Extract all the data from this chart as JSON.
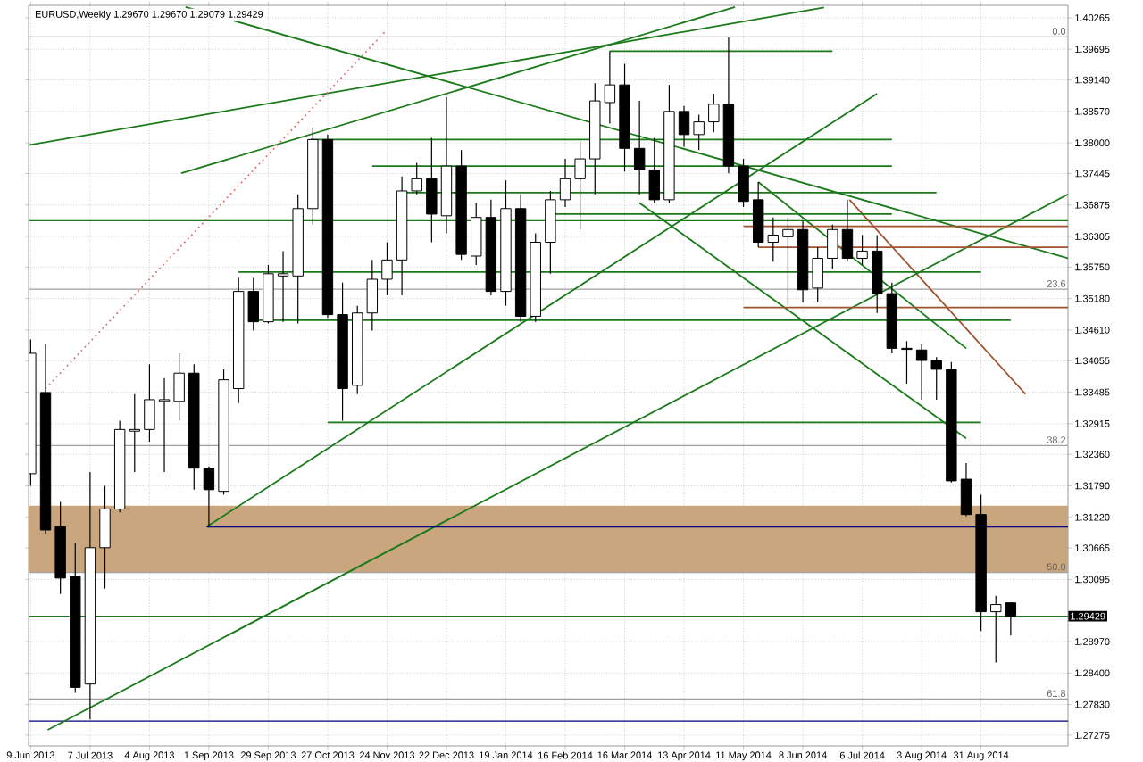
{
  "chart_data": {
    "type": "candlestick",
    "title": "EURUSD,Weekly  1.29670 1.29670 1.29079 1.29429",
    "x": [
      "2013-06-09",
      "2013-06-16",
      "2013-06-23",
      "2013-06-30",
      "2013-07-07",
      "2013-07-14",
      "2013-07-21",
      "2013-07-28",
      "2013-08-04",
      "2013-08-11",
      "2013-08-18",
      "2013-08-25",
      "2013-09-01",
      "2013-09-08",
      "2013-09-15",
      "2013-09-22",
      "2013-09-29",
      "2013-10-06",
      "2013-10-13",
      "2013-10-20",
      "2013-10-27",
      "2013-11-03",
      "2013-11-10",
      "2013-11-17",
      "2013-11-24",
      "2013-12-01",
      "2013-12-08",
      "2013-12-15",
      "2013-12-22",
      "2013-12-29",
      "2014-01-05",
      "2014-01-12",
      "2014-01-19",
      "2014-01-26",
      "2014-02-02",
      "2014-02-09",
      "2014-02-16",
      "2014-02-23",
      "2014-03-02",
      "2014-03-09",
      "2014-03-16",
      "2014-03-23",
      "2014-03-30",
      "2014-04-06",
      "2014-04-13",
      "2014-04-20",
      "2014-04-27",
      "2014-05-04",
      "2014-05-11",
      "2014-05-18",
      "2014-05-25",
      "2014-06-01",
      "2014-06-08",
      "2014-06-15",
      "2014-06-22",
      "2014-06-29",
      "2014-07-06",
      "2014-07-13",
      "2014-07-20",
      "2014-07-27",
      "2014-08-03",
      "2014-08-10",
      "2014-08-17",
      "2014-08-24",
      "2014-08-31",
      "2014-09-07",
      "2014-09-14"
    ],
    "ohlc": [
      [
        1.3201,
        1.3444,
        1.3179,
        1.3419
      ],
      [
        1.3348,
        1.3435,
        1.3092,
        1.3099
      ],
      [
        1.3105,
        1.315,
        1.2983,
        1.3012
      ],
      [
        1.3015,
        1.3076,
        1.2804,
        1.2814
      ],
      [
        1.282,
        1.3204,
        1.2756,
        1.3067
      ],
      [
        1.3067,
        1.3179,
        1.2993,
        1.3137
      ],
      [
        1.3137,
        1.3297,
        1.3131,
        1.3281
      ],
      [
        1.3278,
        1.3345,
        1.3204,
        1.3281
      ],
      [
        1.3281,
        1.3399,
        1.3259,
        1.3335
      ],
      [
        1.3332,
        1.3374,
        1.3204,
        1.3335
      ],
      [
        1.3332,
        1.3419,
        1.3297,
        1.3383
      ],
      [
        1.3383,
        1.3399,
        1.3172,
        1.3211
      ],
      [
        1.3211,
        1.3214,
        1.3105,
        1.3172
      ],
      [
        1.3169,
        1.339,
        1.3163,
        1.3371
      ],
      [
        1.3355,
        1.3556,
        1.3329,
        1.3531
      ],
      [
        1.3531,
        1.3556,
        1.346,
        1.3476
      ],
      [
        1.3476,
        1.3579,
        1.3473,
        1.3563
      ],
      [
        1.3559,
        1.3604,
        1.3476,
        1.3563
      ],
      [
        1.3559,
        1.3707,
        1.3473,
        1.3681
      ],
      [
        1.3681,
        1.3828,
        1.3652,
        1.3806
      ],
      [
        1.3806,
        1.3815,
        1.3483,
        1.3489
      ],
      [
        1.3489,
        1.3547,
        1.3297,
        1.3355
      ],
      [
        1.3361,
        1.3505,
        1.3345,
        1.3492
      ],
      [
        1.3492,
        1.3588,
        1.346,
        1.3553
      ],
      [
        1.3553,
        1.362,
        1.3524,
        1.3588
      ],
      [
        1.3588,
        1.3739,
        1.3524,
        1.3713
      ],
      [
        1.3713,
        1.3764,
        1.3707,
        1.3735
      ],
      [
        1.3735,
        1.3809,
        1.362,
        1.3671
      ],
      [
        1.3668,
        1.3883,
        1.3636,
        1.3758
      ],
      [
        1.3758,
        1.3787,
        1.3588,
        1.3598
      ],
      [
        1.3595,
        1.3691,
        1.3579,
        1.3665
      ],
      [
        1.3665,
        1.3697,
        1.3524,
        1.3531
      ],
      [
        1.3531,
        1.3732,
        1.3505,
        1.3681
      ],
      [
        1.3681,
        1.3707,
        1.3476,
        1.3486
      ],
      [
        1.3486,
        1.3636,
        1.3476,
        1.362
      ],
      [
        1.362,
        1.3713,
        1.3563,
        1.3697
      ],
      [
        1.3697,
        1.3771,
        1.3684,
        1.3735
      ],
      [
        1.3735,
        1.3803,
        1.3643,
        1.3771
      ],
      [
        1.3771,
        1.3908,
        1.3707,
        1.3876
      ],
      [
        1.3873,
        1.3966,
        1.3835,
        1.3905
      ],
      [
        1.3905,
        1.3943,
        1.3748,
        1.379
      ],
      [
        1.379,
        1.3876,
        1.3707,
        1.3751
      ],
      [
        1.3751,
        1.3809,
        1.3691,
        1.3697
      ],
      [
        1.3697,
        1.3905,
        1.3691,
        1.3857
      ],
      [
        1.3857,
        1.3867,
        1.3793,
        1.3815
      ],
      [
        1.3815,
        1.3851,
        1.3787,
        1.3838
      ],
      [
        1.3838,
        1.3889,
        1.3819,
        1.387
      ],
      [
        1.387,
        1.3991,
        1.3745,
        1.3758
      ],
      [
        1.3758,
        1.3771,
        1.3684,
        1.3694
      ],
      [
        1.3697,
        1.3729,
        1.3611,
        1.362
      ],
      [
        1.362,
        1.3665,
        1.3585,
        1.3633
      ],
      [
        1.363,
        1.3665,
        1.3505,
        1.3643
      ],
      [
        1.3643,
        1.3659,
        1.3511,
        1.3534
      ],
      [
        1.3537,
        1.3611,
        1.3511,
        1.3591
      ],
      [
        1.3591,
        1.3652,
        1.3572,
        1.3643
      ],
      [
        1.3643,
        1.3697,
        1.3585,
        1.3591
      ],
      [
        1.3591,
        1.3633,
        1.3579,
        1.3604
      ],
      [
        1.3604,
        1.3633,
        1.3492,
        1.3527
      ],
      [
        1.3527,
        1.3547,
        1.3419,
        1.3428
      ],
      [
        1.3428,
        1.3441,
        1.3364,
        1.3426
      ],
      [
        1.3425,
        1.3435,
        1.3335,
        1.3406
      ],
      [
        1.3406,
        1.3412,
        1.3335,
        1.339
      ],
      [
        1.339,
        1.3403,
        1.3185,
        1.3188
      ],
      [
        1.3191,
        1.322,
        1.3124,
        1.3127
      ],
      [
        1.3127,
        1.3163,
        1.2916,
        1.2951
      ],
      [
        1.2951,
        1.298,
        1.2859,
        1.2964
      ],
      [
        1.2967,
        1.2967,
        1.29079,
        1.29429
      ]
    ],
    "series": [
      {
        "type": "line",
        "x": [
          "2013-06-08",
          "2014-06-18"
        ],
        "values": [
          1.3796,
          1.4045
        ],
        "color": "#1a7a1a",
        "line_style": "solid"
      },
      {
        "type": "line",
        "x": [
          "2013-08-19",
          "2014-05-07"
        ],
        "values": [
          1.3745,
          1.4046
        ],
        "color": "#1a7a1a",
        "line_style": "solid"
      },
      {
        "type": "line",
        "x": [
          "2013-08-21",
          "2014-10-11"
        ],
        "values": [
          1.4046,
          1.3591
        ],
        "color": "#1a7a1a",
        "line_style": "solid"
      },
      {
        "type": "line",
        "x": [
          "2014-03-23",
          "2014-08-24"
        ],
        "values": [
          1.3691,
          1.3265
        ],
        "color": "#1a7a1a",
        "line_style": "solid"
      },
      {
        "type": "line",
        "x": [
          "2014-05-18",
          "2014-08-24"
        ],
        "values": [
          1.3729,
          1.3428
        ],
        "color": "#1a7a1a",
        "line_style": "solid"
      },
      {
        "type": "line",
        "x": [
          "2014-06-30",
          "2014-09-21"
        ],
        "values": [
          1.3697,
          1.3345
        ],
        "color": "#a0522d",
        "line_style": "solid"
      },
      {
        "type": "line",
        "x": [
          "2013-08-31",
          "2014-07-13"
        ],
        "values": [
          1.3105,
          1.3889
        ],
        "color": "#1a7a1a",
        "line_style": "solid"
      },
      {
        "type": "line",
        "x": [
          "2013-06-17",
          "2014-10-11"
        ],
        "values": [
          1.2737,
          1.3707
        ],
        "color": "#1a7a1a",
        "line_style": "solid"
      },
      {
        "type": "line",
        "x": [
          "2013-06-16",
          "2013-11-23"
        ],
        "values": [
          1.3355,
          1.4001
        ],
        "color": "#e07070",
        "line_style": "dotted"
      },
      {
        "type": "line",
        "x": [
          "2014-03-09",
          "2014-06-22"
        ],
        "values": [
          1.3966,
          1.3966
        ],
        "color": "#1a7a1a",
        "line_style": "solid"
      },
      {
        "type": "line",
        "x": [
          "2013-10-19",
          "2014-07-20"
        ],
        "values": [
          1.3806,
          1.3806
        ],
        "color": "#1a7a1a",
        "line_style": "solid"
      },
      {
        "type": "line",
        "x": [
          "2013-11-17",
          "2014-07-20"
        ],
        "values": [
          1.3758,
          1.3758
        ],
        "color": "#1a7a1a",
        "line_style": "solid"
      },
      {
        "type": "line",
        "x": [
          "2013-12-02",
          "2014-08-10"
        ],
        "values": [
          1.371,
          1.371
        ],
        "color": "#1a7a1a",
        "line_style": "solid"
      },
      {
        "type": "line",
        "x": [
          "2014-02-08",
          "2014-07-20"
        ],
        "values": [
          1.3671,
          1.3671
        ],
        "color": "#1a7a1a",
        "line_style": "solid"
      },
      {
        "type": "line",
        "x": [
          "2013-09-15",
          "2014-08-31"
        ],
        "values": [
          1.3566,
          1.3566
        ],
        "color": "#1a7a1a",
        "line_style": "solid"
      },
      {
        "type": "line",
        "x": [
          "2013-09-23",
          "2014-09-14"
        ],
        "values": [
          1.3479,
          1.3479
        ],
        "color": "#1a7a1a",
        "line_style": "solid"
      },
      {
        "type": "line",
        "x": [
          "2013-10-27",
          "2014-08-31"
        ],
        "values": [
          1.3294,
          1.3294
        ],
        "color": "#1a7a1a",
        "line_style": "solid"
      },
      {
        "type": "line",
        "x": [
          "2013-08-31",
          "2014-10-11"
        ],
        "values": [
          1.3105,
          1.3105
        ],
        "color": "#000080",
        "line_style": "solid"
      },
      {
        "type": "line",
        "x": [
          "2014-05-11",
          "2014-10-11"
        ],
        "values": [
          1.3649,
          1.3649
        ],
        "color": "#a0522d",
        "line_style": "solid"
      },
      {
        "type": "line",
        "x": [
          "2014-05-18",
          "2014-10-11"
        ],
        "values": [
          1.3611,
          1.3611
        ],
        "color": "#a0522d",
        "line_style": "solid"
      },
      {
        "type": "line",
        "x": [
          "2014-05-11",
          "2014-10-11"
        ],
        "values": [
          1.3502,
          1.3502
        ],
        "color": "#a0522d",
        "line_style": "solid"
      }
    ],
    "ref_lines": [
      {
        "axis": "y",
        "value": 1.3659,
        "color": "#1a7a1a",
        "line_style": "solid"
      },
      {
        "axis": "y",
        "value": 1.29429,
        "label": "1.29429",
        "color": "#1a7a1a",
        "line_style": "solid"
      },
      {
        "axis": "y",
        "value": 1.2753,
        "color": "#000080",
        "line_style": "solid"
      },
      {
        "axis": "y",
        "value": 1.3992,
        "color": "#a0a0a0",
        "line_style": "solid"
      },
      {
        "axis": "y",
        "value": 1.3535,
        "color": "#a0a0a0",
        "line_style": "solid"
      },
      {
        "axis": "y",
        "value": 1.3252,
        "color": "#a0a0a0",
        "line_style": "solid"
      },
      {
        "axis": "y",
        "value": 1.3022,
        "color": "#a0a0a0",
        "line_style": "solid"
      },
      {
        "axis": "y",
        "value": 1.2793,
        "color": "#a0a0a0",
        "line_style": "solid"
      }
    ],
    "bands": [
      {
        "axis": "y",
        "from": 1.3022,
        "to": 1.3143,
        "color": "#c9a67e"
      }
    ],
    "annotations": [
      {
        "text": "0.0",
        "x": "2014-10-11",
        "y": 1.3992
      },
      {
        "text": "23.6",
        "x": "2014-10-11",
        "y": 1.3535
      },
      {
        "text": "38.2",
        "x": "2014-10-11",
        "y": 1.3252
      },
      {
        "text": "50.0",
        "x": "2014-10-11",
        "y": 1.3022
      },
      {
        "text": "61.8",
        "x": "2014-10-11",
        "y": 1.2793
      }
    ],
    "xlim": [
      "2013-06-08",
      "2014-10-11"
    ],
    "xticks": [
      {
        "value": "2013-06-09",
        "label": "9 Jun 2013"
      },
      {
        "value": "2013-07-07",
        "label": "7 Jul 2013"
      },
      {
        "value": "2013-08-04",
        "label": "4 Aug 2013"
      },
      {
        "value": "2013-09-01",
        "label": "1 Sep 2013"
      },
      {
        "value": "2013-09-29",
        "label": "29 Sep 2013"
      },
      {
        "value": "2013-10-27",
        "label": "27 Oct 2013"
      },
      {
        "value": "2013-11-24",
        "label": "24 Nov 2013"
      },
      {
        "value": "2013-12-22",
        "label": "22 Dec 2013"
      },
      {
        "value": "2014-01-19",
        "label": "19 Jan 2014"
      },
      {
        "value": "2014-02-16",
        "label": "16 Feb 2014"
      },
      {
        "value": "2014-03-16",
        "label": "16 Mar 2014"
      },
      {
        "value": "2014-04-13",
        "label": "13 Apr 2014"
      },
      {
        "value": "2014-05-11",
        "label": "11 May 2014"
      },
      {
        "value": "2014-06-08",
        "label": "8 Jun 2014"
      },
      {
        "value": "2014-07-06",
        "label": "6 Jul 2014"
      },
      {
        "value": "2014-08-03",
        "label": "3 Aug 2014"
      },
      {
        "value": "2014-08-31",
        "label": "31 Aug 2014"
      }
    ],
    "ylim": [
      1.2708,
      1.4049
    ],
    "yticks": [
      {
        "value": 1.40265,
        "label": "1.40265"
      },
      {
        "value": 1.39695,
        "label": "1.39695"
      },
      {
        "value": 1.3914,
        "label": "1.39140"
      },
      {
        "value": 1.3857,
        "label": "1.38570"
      },
      {
        "value": 1.38,
        "label": "1.38000"
      },
      {
        "value": 1.37445,
        "label": "1.37445"
      },
      {
        "value": 1.36875,
        "label": "1.36875"
      },
      {
        "value": 1.36305,
        "label": "1.36305"
      },
      {
        "value": 1.3575,
        "label": "1.35750"
      },
      {
        "value": 1.3518,
        "label": "1.35180"
      },
      {
        "value": 1.3461,
        "label": "1.34610"
      },
      {
        "value": 1.34055,
        "label": "1.34055"
      },
      {
        "value": 1.33485,
        "label": "1.33485"
      },
      {
        "value": 1.32915,
        "label": "1.32915"
      },
      {
        "value": 1.3236,
        "label": "1.32360"
      },
      {
        "value": 1.3179,
        "label": "1.31790"
      },
      {
        "value": 1.3122,
        "label": "1.31220"
      },
      {
        "value": 1.30665,
        "label": "1.30665"
      },
      {
        "value": 1.30095,
        "label": "1.30095"
      },
      {
        "value": 1.2897,
        "label": "1.28970"
      },
      {
        "value": 1.284,
        "label": "1.28400"
      },
      {
        "value": 1.2783,
        "label": "1.27830"
      },
      {
        "value": 1.27275,
        "label": "1.27275"
      }
    ],
    "grid": true
  }
}
